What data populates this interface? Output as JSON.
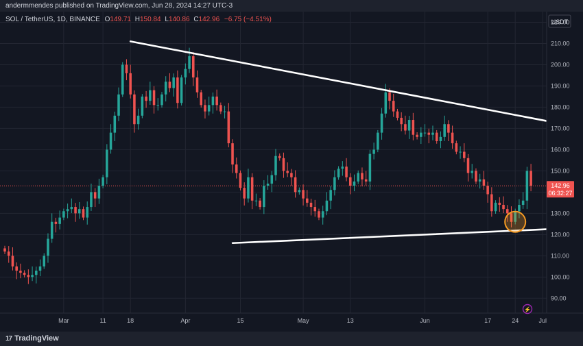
{
  "header": {
    "published": "andermmendes published on TradingView.com, Jun 28, 2024 14:27 UTC-3"
  },
  "footer": {
    "brand": "TradingView"
  },
  "legend": {
    "symbol": "SOL / TetherUS, 1D, BINANCE",
    "o_label": "O",
    "o_value": "149.71",
    "h_label": "H",
    "h_value": "150.84",
    "l_label": "L",
    "l_value": "140.86",
    "c_label": "C",
    "c_value": "142.96",
    "change": "−6.75 (−4.51%)"
  },
  "axis": {
    "currency": "USDT",
    "price_label": "142.96",
    "countdown": "06:32:27"
  },
  "colors": {
    "background": "#131722",
    "up": "#26a69a",
    "down": "#ef5350",
    "grid": "#232632",
    "trendline": "#ffffff",
    "highlight": "#f59a23"
  },
  "chart_data": {
    "type": "candlestick",
    "symbol": "SOL/USDT",
    "interval": "1D",
    "ylim": [
      83,
      225
    ],
    "yticks": [
      90,
      100,
      110,
      120,
      130,
      140,
      150,
      160,
      170,
      180,
      190,
      200,
      210,
      220
    ],
    "ytick_labels": [
      "90.00",
      "100.00",
      "110.00",
      "120.00",
      "130.00",
      "140.00",
      "150.00",
      "160.00",
      "170.00",
      "180.00",
      "190.00",
      "200.00",
      "210.00",
      "220.00"
    ],
    "xlim": [
      "2024-02-15",
      "2024-07-02"
    ],
    "xticks": [
      {
        "date": "2024-03-01",
        "label": "Mar"
      },
      {
        "date": "2024-03-11",
        "label": "11"
      },
      {
        "date": "2024-03-18",
        "label": "18"
      },
      {
        "date": "2024-04-01",
        "label": "Apr"
      },
      {
        "date": "2024-04-15",
        "label": "15"
      },
      {
        "date": "2024-05-01",
        "label": "May"
      },
      {
        "date": "2024-05-13",
        "label": "13"
      },
      {
        "date": "2024-06-01",
        "label": "Jun"
      },
      {
        "date": "2024-06-17",
        "label": "17"
      },
      {
        "date": "2024-06-24",
        "label": "24"
      },
      {
        "date": "2024-07-01",
        "label": "Jul"
      }
    ],
    "last_price": 142.96,
    "start_date": "2024-02-15",
    "closes": [
      112,
      110,
      105,
      103,
      102,
      101,
      100,
      101,
      103,
      105,
      110,
      118,
      126,
      125,
      128,
      131,
      132,
      133,
      130,
      132,
      128,
      133,
      140,
      137,
      143,
      147,
      160,
      168,
      176,
      186,
      200,
      196,
      186,
      172,
      176,
      185,
      183,
      188,
      181,
      181,
      186,
      192,
      189,
      194,
      182,
      194,
      198,
      204,
      194,
      187,
      181,
      178,
      181,
      185,
      181,
      178,
      178,
      163,
      153,
      149,
      142,
      137,
      147,
      136,
      136,
      133,
      143,
      144,
      148,
      157,
      156,
      150,
      149,
      147,
      140,
      141,
      137,
      135,
      133,
      131,
      128,
      131,
      136,
      141,
      147,
      151,
      152,
      147,
      143,
      145,
      149,
      146,
      145,
      158,
      160,
      168,
      177,
      187,
      183,
      178,
      175,
      172,
      169,
      174,
      167,
      166,
      168,
      168,
      167,
      168,
      164,
      166,
      172,
      168,
      163,
      159,
      159,
      156,
      149,
      150,
      145,
      146,
      143,
      139,
      131,
      135,
      134,
      132,
      130,
      126,
      131,
      134,
      136,
      150,
      143
    ],
    "trendlines": [
      {
        "from": {
          "date": "2024-03-18",
          "price": 211
        },
        "to": {
          "date": "2024-07-02",
          "price": 173.5
        }
      },
      {
        "from": {
          "date": "2024-04-13",
          "price": 116
        },
        "to": {
          "date": "2024-07-02",
          "price": 122.5
        }
      }
    ],
    "highlight": {
      "date": "2024-06-24",
      "price": 126
    }
  }
}
